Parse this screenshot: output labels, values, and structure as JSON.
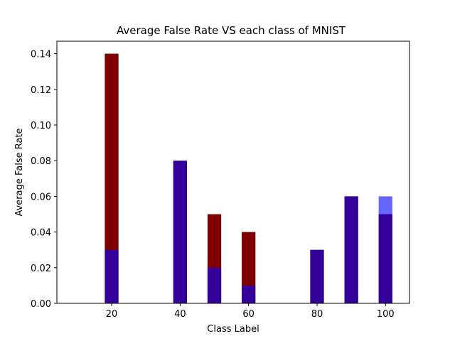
{
  "chart_data": {
    "type": "bar",
    "title": "Average False Rate VS each class of MNIST",
    "xlabel": "Class Label",
    "ylabel": "Average False Rate",
    "xlim": [
      4,
      107
    ],
    "ylim": [
      0,
      0.147
    ],
    "xticks": [
      20,
      40,
      60,
      80,
      100
    ],
    "yticks": [
      0.0,
      0.02,
      0.04,
      0.06,
      0.08,
      0.1,
      0.12,
      0.14
    ],
    "ytick_labels": [
      "0.00",
      "0.02",
      "0.04",
      "0.06",
      "0.08",
      "0.10",
      "0.12",
      "0.14"
    ],
    "bar_width": 4,
    "categories": [
      20,
      40,
      50,
      60,
      80,
      90,
      100
    ],
    "series": [
      {
        "color": "#800000",
        "opacity": 1.0,
        "values": [
          0.14,
          0.08,
          0.05,
          0.04,
          0.03,
          0.06,
          0.05
        ]
      },
      {
        "color": "#0000ff",
        "opacity": 0.6,
        "values": [
          0.03,
          0.08,
          0.02,
          0.01,
          0.03,
          0.06,
          0.06
        ]
      }
    ],
    "grid": false,
    "legend": "none"
  }
}
